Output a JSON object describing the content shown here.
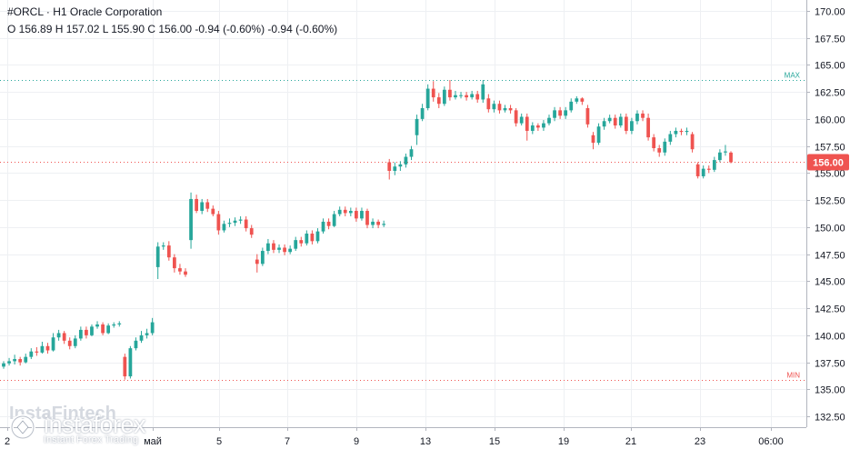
{
  "header": {
    "title": "#ORCL · H1 Oracle Corporation",
    "ohlc": "O 156.89 H 157.02 L 155.90 C 156.00 -0.94 (-0.60%) -0.94 (-0.60%)"
  },
  "watermark": {
    "tag": "InstaFintech",
    "name": "instaforex",
    "subtitle": "Instant Forex Trading"
  },
  "colors": {
    "up": "#26a69a",
    "down": "#ef5350",
    "grid": "#eef0f3",
    "max_line": "#26a69a",
    "min_line": "#ef5350",
    "current_line": "#ef5350"
  },
  "chart_data": {
    "type": "candlestick",
    "ylim": [
      131.5,
      171
    ],
    "y_ticks": [
      "170.00",
      "167.50",
      "165.00",
      "162.50",
      "160.00",
      "157.50",
      "155.00",
      "152.50",
      "150.00",
      "147.50",
      "145.00",
      "142.50",
      "140.00",
      "137.50",
      "135.00",
      "132.50"
    ],
    "x_tick_labels": [
      "2",
      "май",
      "5",
      "7",
      "9",
      "13",
      "15",
      "19",
      "21",
      "23",
      "06:00"
    ],
    "max_label": "MAX",
    "max_value": 163.6,
    "min_label": "MIN",
    "min_value": 135.9,
    "current_price": "156.00",
    "current_value": 156.0,
    "grid": true,
    "legend": "none",
    "candles": [
      [
        137.1,
        137.4,
        136.9,
        137.6
      ],
      [
        137.4,
        137.6,
        137.2,
        137.9
      ],
      [
        137.6,
        137.8,
        137.3,
        138.2
      ],
      [
        137.8,
        137.5,
        137.2,
        138.0
      ],
      [
        137.5,
        138.0,
        137.4,
        138.3
      ],
      [
        138.0,
        138.5,
        137.8,
        138.8
      ],
      [
        138.5,
        138.4,
        138.1,
        138.9
      ],
      [
        138.4,
        139.0,
        138.3,
        139.4
      ],
      [
        139.0,
        138.6,
        138.3,
        139.3
      ],
      [
        138.6,
        139.8,
        138.5,
        140.2
      ],
      [
        139.8,
        140.2,
        139.5,
        140.5
      ],
      [
        140.2,
        139.5,
        139.2,
        140.4
      ],
      [
        139.5,
        139.0,
        138.7,
        139.8
      ],
      [
        139.0,
        139.7,
        138.8,
        140.0
      ],
      [
        139.7,
        140.5,
        139.5,
        140.8
      ],
      [
        140.5,
        140.0,
        139.7,
        140.8
      ],
      [
        140.0,
        140.8,
        139.9,
        141.0
      ],
      [
        140.8,
        141.0,
        140.6,
        141.3
      ],
      [
        141.0,
        140.2,
        140.0,
        141.2
      ],
      [
        140.2,
        140.9,
        140.1,
        141.1
      ],
      [
        140.9,
        141.0,
        140.7,
        141.2
      ],
      [
        141.0,
        141.1,
        140.8,
        141.3
      ],
      [
        138.0,
        136.2,
        135.9,
        138.3
      ],
      [
        136.2,
        138.8,
        136.0,
        139.0
      ],
      [
        138.8,
        139.5,
        138.6,
        139.8
      ],
      [
        139.5,
        140.0,
        139.3,
        140.4
      ],
      [
        140.0,
        140.2,
        139.7,
        140.6
      ],
      [
        140.2,
        141.2,
        140.0,
        141.6
      ],
      [
        146.3,
        148.2,
        145.2,
        148.6
      ],
      [
        148.2,
        148.3,
        147.9,
        148.6
      ],
      [
        148.3,
        147.2,
        146.9,
        148.7
      ],
      [
        147.2,
        146.2,
        145.8,
        147.5
      ],
      [
        146.2,
        145.9,
        145.6,
        146.6
      ],
      [
        145.9,
        145.6,
        145.4,
        146.2
      ],
      [
        148.8,
        152.6,
        148.0,
        153.2
      ],
      [
        152.6,
        151.5,
        151.3,
        153.0
      ],
      [
        151.5,
        152.3,
        151.2,
        152.6
      ],
      [
        152.3,
        151.7,
        151.4,
        152.6
      ],
      [
        151.7,
        151.2,
        151.0,
        152.0
      ],
      [
        151.2,
        149.7,
        149.3,
        151.5
      ],
      [
        149.7,
        150.3,
        149.5,
        150.6
      ],
      [
        150.3,
        150.4,
        150.0,
        150.8
      ],
      [
        150.4,
        150.6,
        150.1,
        150.9
      ],
      [
        150.6,
        150.7,
        150.3,
        151.0
      ],
      [
        150.7,
        149.9,
        149.6,
        151.0
      ],
      [
        149.9,
        149.3,
        149.0,
        150.2
      ],
      [
        147.0,
        146.6,
        145.8,
        147.5
      ],
      [
        146.6,
        147.8,
        146.4,
        148.1
      ],
      [
        147.8,
        148.5,
        147.5,
        148.9
      ],
      [
        148.5,
        147.9,
        147.6,
        148.8
      ],
      [
        147.9,
        148.1,
        147.6,
        148.4
      ],
      [
        148.1,
        147.7,
        147.4,
        148.4
      ],
      [
        147.7,
        148.0,
        147.5,
        148.3
      ],
      [
        148.0,
        148.8,
        147.8,
        149.1
      ],
      [
        148.8,
        148.5,
        148.2,
        149.1
      ],
      [
        148.5,
        149.4,
        148.3,
        149.7
      ],
      [
        149.4,
        148.7,
        148.4,
        149.7
      ],
      [
        148.7,
        149.6,
        148.5,
        149.9
      ],
      [
        149.6,
        150.5,
        149.4,
        150.8
      ],
      [
        150.5,
        150.1,
        149.8,
        150.8
      ],
      [
        150.1,
        151.2,
        150.0,
        151.5
      ],
      [
        151.2,
        151.6,
        151.0,
        151.9
      ],
      [
        151.6,
        151.3,
        151.0,
        151.9
      ],
      [
        151.3,
        151.5,
        151.0,
        151.8
      ],
      [
        151.5,
        150.8,
        150.5,
        151.8
      ],
      [
        150.8,
        151.5,
        150.6,
        151.8
      ],
      [
        151.5,
        150.2,
        149.9,
        151.7
      ],
      [
        150.2,
        150.5,
        149.9,
        150.8
      ],
      [
        150.5,
        150.2,
        149.9,
        150.7
      ],
      [
        150.2,
        150.3,
        150.0,
        150.6
      ],
      [
        156.0,
        155.2,
        154.4,
        156.3
      ],
      [
        155.2,
        155.6,
        154.8,
        156.0
      ],
      [
        155.6,
        155.8,
        155.2,
        156.1
      ],
      [
        155.8,
        156.5,
        155.5,
        156.8
      ],
      [
        156.5,
        157.2,
        156.2,
        157.5
      ],
      [
        158.5,
        160.0,
        157.6,
        160.4
      ],
      [
        160.0,
        161.0,
        159.8,
        161.4
      ],
      [
        161.0,
        162.8,
        160.8,
        163.2
      ],
      [
        162.8,
        162.0,
        161.6,
        163.5
      ],
      [
        162.0,
        161.4,
        161.0,
        162.4
      ],
      [
        161.4,
        162.7,
        161.2,
        163.0
      ],
      [
        162.7,
        162.0,
        161.7,
        163.6
      ],
      [
        162.0,
        162.2,
        161.8,
        162.6
      ],
      [
        162.2,
        162.2,
        161.9,
        162.5
      ],
      [
        162.2,
        162.0,
        161.7,
        162.5
      ],
      [
        162.0,
        162.3,
        161.8,
        162.6
      ],
      [
        162.3,
        161.8,
        161.5,
        162.6
      ],
      [
        161.8,
        163.2,
        161.5,
        163.6
      ],
      [
        161.9,
        160.9,
        160.6,
        162.3
      ],
      [
        160.9,
        161.4,
        160.6,
        161.7
      ],
      [
        161.4,
        160.8,
        160.5,
        161.7
      ],
      [
        160.8,
        161.0,
        160.6,
        161.3
      ],
      [
        161.0,
        160.8,
        160.5,
        161.3
      ],
      [
        160.8,
        159.6,
        159.3,
        161.0
      ],
      [
        159.6,
        160.2,
        159.4,
        160.5
      ],
      [
        160.2,
        158.9,
        158.0,
        160.5
      ],
      [
        158.9,
        159.4,
        158.6,
        159.7
      ],
      [
        159.4,
        159.2,
        158.9,
        159.6
      ],
      [
        159.2,
        159.6,
        158.9,
        159.9
      ],
      [
        159.6,
        160.1,
        159.4,
        160.4
      ],
      [
        160.1,
        160.8,
        159.8,
        161.1
      ],
      [
        160.8,
        160.3,
        160.0,
        161.1
      ],
      [
        160.3,
        160.8,
        160.0,
        161.1
      ],
      [
        160.8,
        161.6,
        160.6,
        161.9
      ],
      [
        161.6,
        161.9,
        161.4,
        162.1
      ],
      [
        161.9,
        161.6,
        161.3,
        162.0
      ],
      [
        161.0,
        159.5,
        159.2,
        161.3
      ],
      [
        158.5,
        157.8,
        157.2,
        158.8
      ],
      [
        157.8,
        159.3,
        157.6,
        159.6
      ],
      [
        159.3,
        159.8,
        159.0,
        160.1
      ],
      [
        159.8,
        160.1,
        159.6,
        160.4
      ],
      [
        160.1,
        159.4,
        159.1,
        160.4
      ],
      [
        159.4,
        160.2,
        159.2,
        160.5
      ],
      [
        160.2,
        158.9,
        158.6,
        160.5
      ],
      [
        158.9,
        159.8,
        158.6,
        160.1
      ],
      [
        159.8,
        160.5,
        159.5,
        160.8
      ],
      [
        160.5,
        160.1,
        159.8,
        160.8
      ],
      [
        160.1,
        158.3,
        158.0,
        160.5
      ],
      [
        158.3,
        157.3,
        157.0,
        158.6
      ],
      [
        157.3,
        156.9,
        156.5,
        157.6
      ],
      [
        156.9,
        157.9,
        156.6,
        158.2
      ],
      [
        157.9,
        158.6,
        157.6,
        158.9
      ],
      [
        158.6,
        158.9,
        158.3,
        159.2
      ],
      [
        158.9,
        158.8,
        158.5,
        159.1
      ],
      [
        158.8,
        158.9,
        158.5,
        159.2
      ],
      [
        158.6,
        157.2,
        156.9,
        158.8
      ],
      [
        155.8,
        154.7,
        154.5,
        156.0
      ],
      [
        154.7,
        155.4,
        154.5,
        155.7
      ],
      [
        155.4,
        155.3,
        155.0,
        155.7
      ],
      [
        155.3,
        156.2,
        155.1,
        156.5
      ],
      [
        156.2,
        156.9,
        156.0,
        157.2
      ],
      [
        156.9,
        157.0,
        156.6,
        157.6
      ],
      [
        156.89,
        156.0,
        155.9,
        157.02
      ]
    ]
  }
}
